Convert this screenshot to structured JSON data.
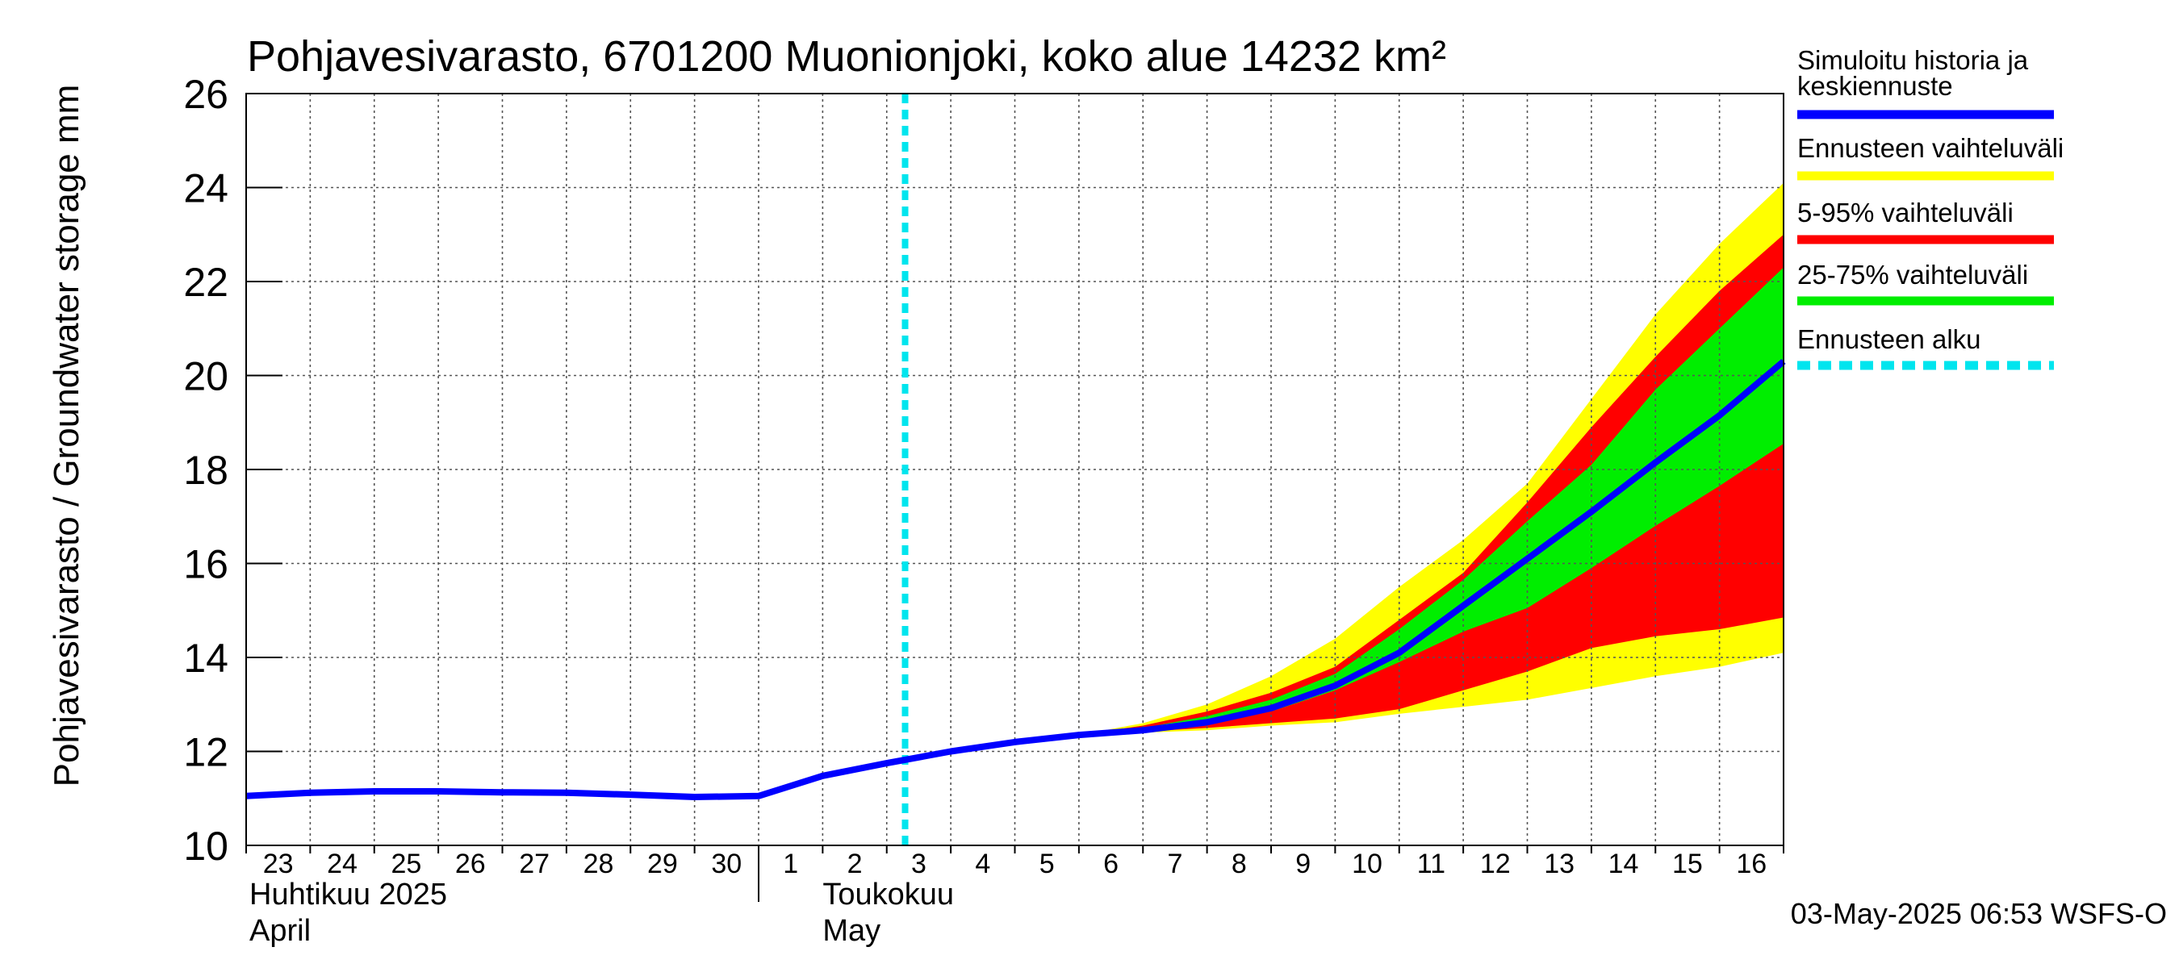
{
  "chart_data": {
    "type": "area",
    "title": "Pohjavesivarasto, 6701200 Muonionjoki, koko alue 14232 km²",
    "ylabel": "Pohjavesivarasto / Groundwater storage   mm",
    "ylim": [
      10,
      26
    ],
    "yticks": [
      10,
      12,
      14,
      16,
      18,
      20,
      22,
      24,
      26
    ],
    "xlim": [
      "2025-04-23",
      "2025-05-17"
    ],
    "x_tick_labels": [
      "23",
      "24",
      "25",
      "26",
      "27",
      "28",
      "29",
      "30",
      "1",
      "2",
      "3",
      "4",
      "5",
      "6",
      "7",
      "8",
      "9",
      "10",
      "11",
      "12",
      "13",
      "14",
      "15",
      "16"
    ],
    "month_labels": [
      {
        "line1": "Huhtikuu  2025",
        "line2": "April"
      },
      {
        "line1": "Toukokuu",
        "line2": "May"
      }
    ],
    "grid": true,
    "forecast_start": "2025-05-03T06:53",
    "timestamp": "03-May-2025 06:53 WSFS-O",
    "series": [
      {
        "name": "Simuloitu historia ja keskiennuste",
        "color": "#0000ff",
        "x": [
          "2025-04-23",
          "2025-04-24",
          "2025-04-25",
          "2025-04-26",
          "2025-04-27",
          "2025-04-28",
          "2025-04-29",
          "2025-04-30",
          "2025-05-01",
          "2025-05-02",
          "2025-05-03",
          "2025-05-04",
          "2025-05-05",
          "2025-05-06",
          "2025-05-07",
          "2025-05-08",
          "2025-05-09",
          "2025-05-10",
          "2025-05-11",
          "2025-05-12",
          "2025-05-13",
          "2025-05-14",
          "2025-05-15",
          "2025-05-16",
          "2025-05-17"
        ],
        "y": [
          11.05,
          11.12,
          11.15,
          11.15,
          11.13,
          11.12,
          11.08,
          11.03,
          11.05,
          11.48,
          11.75,
          12.0,
          12.2,
          12.35,
          12.45,
          12.62,
          12.92,
          13.4,
          14.1,
          15.1,
          16.1,
          17.1,
          18.15,
          19.15,
          20.3
        ]
      }
    ],
    "bands": [
      {
        "name": "Ennusteen vaihteluväli",
        "color": "#ffff00",
        "x": [
          "2025-05-06",
          "2025-05-07",
          "2025-05-08",
          "2025-05-09",
          "2025-05-10",
          "2025-05-11",
          "2025-05-12",
          "2025-05-13",
          "2025-05-14",
          "2025-05-15",
          "2025-05-16",
          "2025-05-17"
        ],
        "upper": [
          12.35,
          12.6,
          13.0,
          13.6,
          14.4,
          15.5,
          16.5,
          17.7,
          19.5,
          21.3,
          22.8,
          24.1
        ],
        "lower": [
          12.35,
          12.4,
          12.45,
          12.55,
          12.62,
          12.8,
          12.95,
          13.1,
          13.35,
          13.6,
          13.8,
          14.1
        ]
      },
      {
        "name": "5-95% vaihteluväli",
        "color": "#ff0000",
        "x": [
          "2025-05-06",
          "2025-05-07",
          "2025-05-08",
          "2025-05-09",
          "2025-05-10",
          "2025-05-11",
          "2025-05-12",
          "2025-05-13",
          "2025-05-14",
          "2025-05-15",
          "2025-05-16",
          "2025-05-17"
        ],
        "upper": [
          12.35,
          12.55,
          12.85,
          13.25,
          13.8,
          14.8,
          15.8,
          17.3,
          18.9,
          20.4,
          21.8,
          23.0
        ],
        "lower": [
          12.35,
          12.42,
          12.5,
          12.6,
          12.7,
          12.9,
          13.3,
          13.7,
          14.2,
          14.45,
          14.6,
          14.85
        ]
      },
      {
        "name": "25-75% vaihteluväli",
        "color": "#00ee00",
        "x": [
          "2025-05-06",
          "2025-05-07",
          "2025-05-08",
          "2025-05-09",
          "2025-05-10",
          "2025-05-11",
          "2025-05-12",
          "2025-05-13",
          "2025-05-14",
          "2025-05-15",
          "2025-05-16",
          "2025-05-17"
        ],
        "upper": [
          12.35,
          12.5,
          12.75,
          13.1,
          13.65,
          14.6,
          15.65,
          16.9,
          18.1,
          19.7,
          21.0,
          22.3
        ],
        "lower": [
          12.35,
          12.45,
          12.6,
          12.85,
          13.3,
          13.9,
          14.55,
          15.05,
          15.9,
          16.8,
          17.65,
          18.55
        ]
      }
    ],
    "legend": [
      {
        "label_line1": "Simuloitu historia ja",
        "label_line2": "keskiennuste",
        "color": "#0000ff",
        "style": "solid"
      },
      {
        "label_line1": "Ennusteen vaihteluväli",
        "color": "#ffff00",
        "style": "solid"
      },
      {
        "label_line1": "5-95% vaihteluväli",
        "color": "#ff0000",
        "style": "solid"
      },
      {
        "label_line1": "25-75% vaihteluväli",
        "color": "#00ee00",
        "style": "solid"
      },
      {
        "label_line1": "Ennusteen alku",
        "color": "#00e5ee",
        "style": "dashed"
      }
    ]
  }
}
